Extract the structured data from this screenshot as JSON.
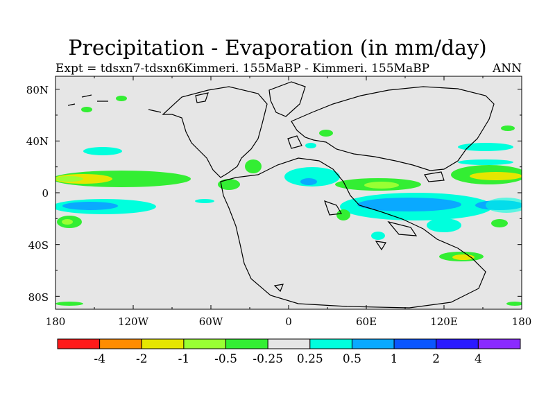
{
  "title": "Precipitation - Evaporation (in mm/day)",
  "subtitle_left": "Expt = tdsxn7-tdsxn6",
  "subtitle_center": "Kimmeri. 155MaBP - Kimmeri. 155MaBP",
  "subtitle_right": "ANN",
  "lat_labels": [
    "80N",
    "40N",
    "0",
    "40S",
    "80S"
  ],
  "lon_labels": [
    "180",
    "120W",
    "60W",
    "0",
    "60E",
    "120E",
    "180"
  ],
  "colorbar": {
    "colors": [
      "#ff1a1a",
      "#ff8c00",
      "#e6e600",
      "#99ff33",
      "#33ee33",
      "#e6e6e6",
      "#00ffdd",
      "#0aa9ff",
      "#0a56ff",
      "#2a1aff",
      "#8a2aff"
    ],
    "labels": [
      "-4",
      "-2",
      "-1",
      "-0.5",
      "-0.25",
      "0.25",
      "0.5",
      "1",
      "2",
      "4"
    ]
  },
  "colors": {
    "background": "#e6e6e6",
    "green": "#33ee33",
    "lime": "#99ff33",
    "yellow": "#e6e600",
    "cyan": "#00ffdd",
    "blue": "#0aa9ff"
  },
  "chart_data": {
    "type": "heatmap",
    "title": "Precipitation - Evaporation (in mm/day)",
    "experiment": "Expt = tdsxn7-tdsxn6",
    "comparison": "Kimmeri. 155MaBP - Kimmeri. 155MaBP",
    "season": "ANN",
    "units": "mm/day",
    "xlim": [
      -180,
      180
    ],
    "ylim": [
      -90,
      90
    ],
    "contour_levels": [
      -4,
      -2,
      -1,
      -0.5,
      -0.25,
      0.25,
      0.5,
      1,
      2,
      4
    ]
  }
}
